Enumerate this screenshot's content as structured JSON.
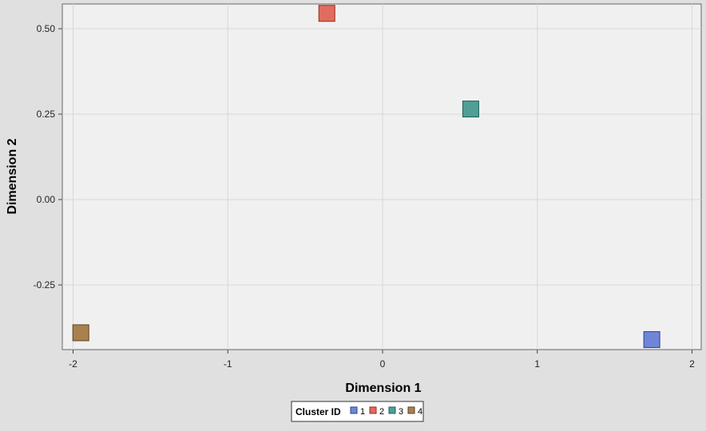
{
  "chart_data": {
    "type": "scatter",
    "title": "",
    "xlabel": "Dimension 1",
    "ylabel": "Dimension 2",
    "xlim": [
      -2.06,
      2.06
    ],
    "ylim": [
      -0.44,
      0.575
    ],
    "x_ticks": [
      -2,
      -1,
      0,
      1,
      2
    ],
    "x_tick_labels": [
      "-2",
      "-1",
      "0",
      "1",
      "2"
    ],
    "y_ticks": [
      0.5,
      0.25,
      0.0,
      -0.25
    ],
    "y_tick_labels": [
      "0.50",
      "0.25",
      "0.00",
      "-0.25"
    ],
    "grid": true,
    "legend": {
      "title": "Cluster ID",
      "placement": "bottom-center"
    },
    "series": [
      {
        "name": "1",
        "color": "#6f86d6",
        "stroke": "#2a3fa0",
        "points": [
          {
            "x": 1.74,
            "y": -0.41
          }
        ]
      },
      {
        "name": "2",
        "color": "#e06b5e",
        "stroke": "#9a2a20",
        "points": [
          {
            "x": -0.36,
            "y": 0.545
          }
        ]
      },
      {
        "name": "3",
        "color": "#4f9f97",
        "stroke": "#1f5f58",
        "points": [
          {
            "x": 0.57,
            "y": 0.265
          }
        ]
      },
      {
        "name": "4",
        "color": "#a8814f",
        "stroke": "#5e4320",
        "points": [
          {
            "x": -1.95,
            "y": -0.39
          }
        ]
      }
    ],
    "marker": "square",
    "plot_background": "#f0f0f0",
    "page_background": "#e0e0e0",
    "grid_color": "#d8d8d8"
  }
}
